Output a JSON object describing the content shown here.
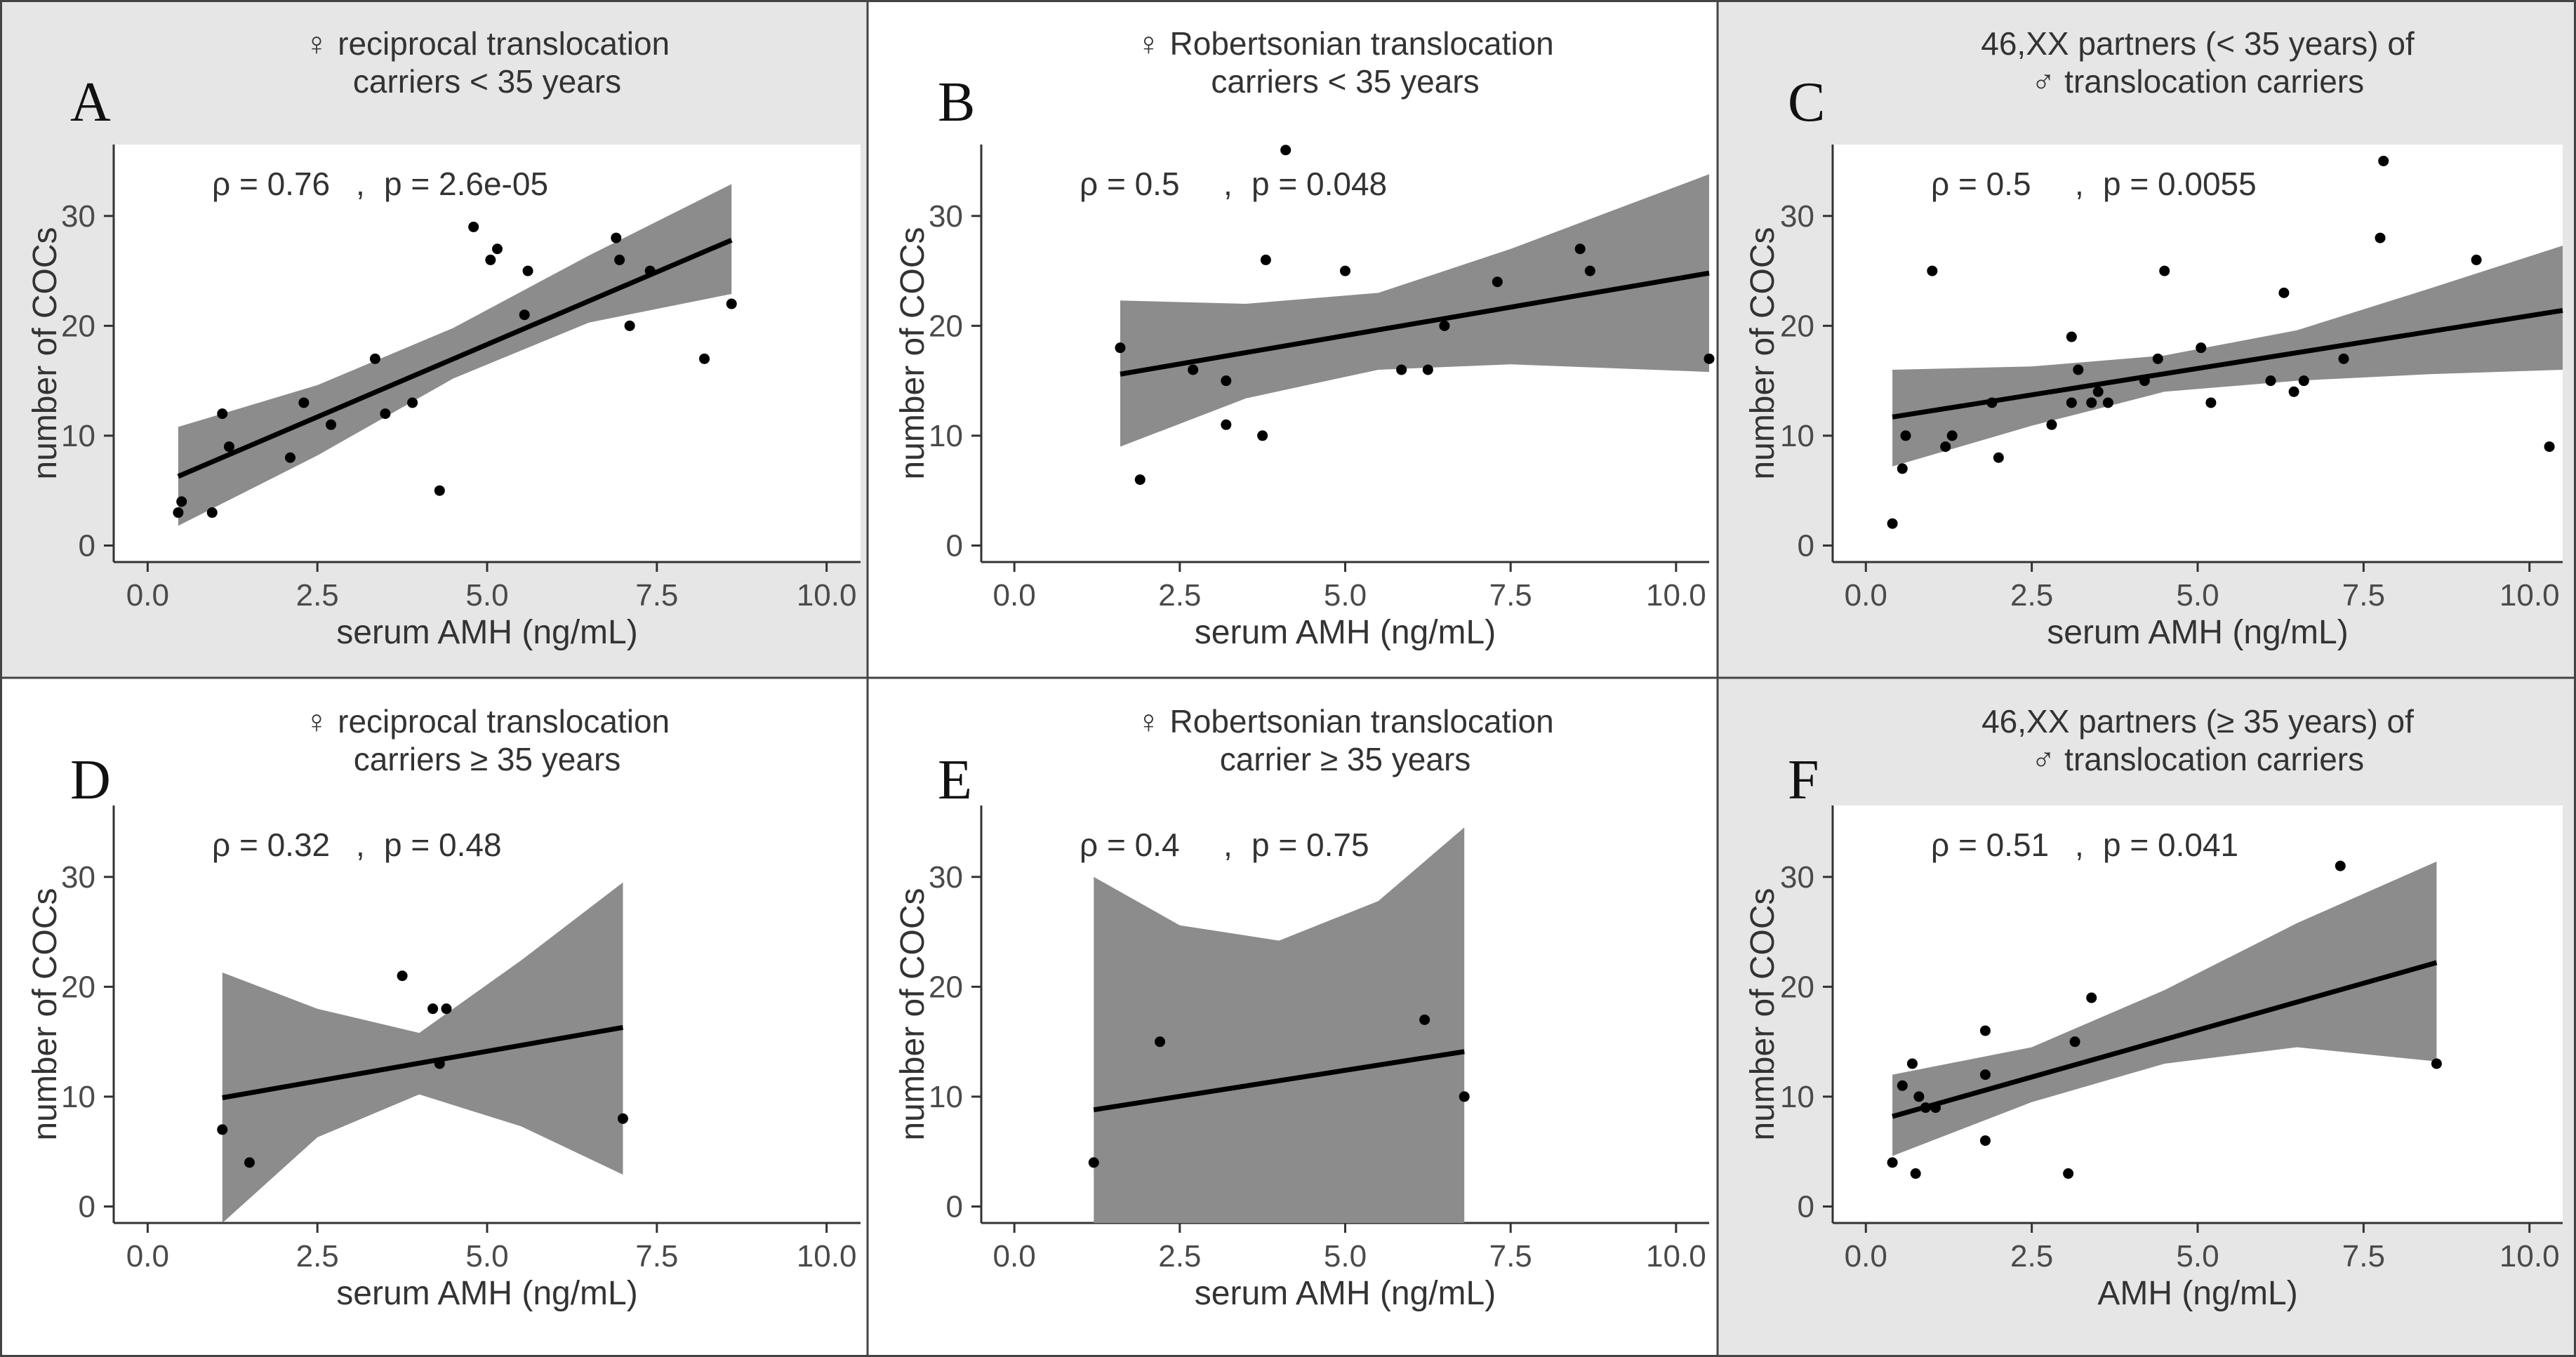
{
  "colors": {
    "page_background": "#ffffff",
    "panel_background_gray": "#e6e6e6",
    "plot_background": "#ffffff",
    "confidence_band": "#8c8c8c",
    "regression_line": "#000000",
    "points": "#000000",
    "panel_border": "#444444"
  },
  "chart_data": [
    {
      "type": "scatter",
      "panel_letter": "A",
      "title_lines": [
        "♀ reciprocal translocation",
        "carriers < 35 years"
      ],
      "xlabel": "serum AMH (ng/mL)",
      "ylabel": "number of COCs",
      "stat_rho": "ρ = 0.76",
      "stat_p": "p = 2.6e-05",
      "xlim": [
        -0.5,
        10.5
      ],
      "ylim": [
        -1.5,
        36.5
      ],
      "x_ticks": [
        0,
        2.5,
        5,
        7.5,
        10
      ],
      "x_tick_labels": [
        "0.0",
        "2.5",
        "5.0",
        "7.5",
        "10.0"
      ],
      "y_ticks": [
        0,
        10,
        20,
        30
      ],
      "y_tick_labels": [
        "0",
        "10",
        "20",
        "30"
      ],
      "fit_x_range": [
        0.45,
        8.6
      ],
      "fit_line": [
        6.3,
        27.8
      ],
      "fit_band_x": [
        0.45,
        2.5,
        4.5,
        6.5,
        8.6
      ],
      "fit_band_lower": [
        1.8,
        8.2,
        15.2,
        20.3,
        22.9
      ],
      "fit_band_upper": [
        10.8,
        14.6,
        19.8,
        26.4,
        32.9
      ],
      "points": [
        [
          0.45,
          3
        ],
        [
          0.5,
          4
        ],
        [
          0.95,
          3
        ],
        [
          1.1,
          12
        ],
        [
          1.2,
          9
        ],
        [
          2.1,
          8
        ],
        [
          2.3,
          13
        ],
        [
          2.7,
          11
        ],
        [
          3.35,
          17
        ],
        [
          3.5,
          12
        ],
        [
          3.9,
          13
        ],
        [
          4.3,
          5
        ],
        [
          4.8,
          29
        ],
        [
          5.05,
          26
        ],
        [
          5.15,
          27
        ],
        [
          5.55,
          21
        ],
        [
          5.6,
          25
        ],
        [
          6.9,
          28
        ],
        [
          6.95,
          26
        ],
        [
          7.1,
          20
        ],
        [
          7.4,
          25
        ],
        [
          8.2,
          17
        ],
        [
          8.6,
          22
        ]
      ]
    },
    {
      "type": "scatter",
      "panel_letter": "B",
      "title_lines": [
        "♀ Robertsonian translocation",
        "carriers < 35 years"
      ],
      "xlabel": "serum AMH (ng/mL)",
      "ylabel": "number of COCs",
      "stat_rho": "ρ = 0.5",
      "stat_p": "p = 0.048",
      "xlim": [
        -0.5,
        10.5
      ],
      "ylim": [
        -1.5,
        36.5
      ],
      "x_ticks": [
        0,
        2.5,
        5,
        7.5,
        10
      ],
      "x_tick_labels": [
        "0.0",
        "2.5",
        "5.0",
        "7.5",
        "10.0"
      ],
      "y_ticks": [
        0,
        10,
        20,
        30
      ],
      "y_tick_labels": [
        "0",
        "10",
        "20",
        "30"
      ],
      "fit_x_range": [
        1.6,
        10.5
      ],
      "fit_line": [
        15.6,
        24.8
      ],
      "fit_band_x": [
        1.6,
        3.5,
        5.5,
        7.5,
        10.5
      ],
      "fit_band_lower": [
        9.0,
        13.4,
        16.0,
        16.5,
        15.8
      ],
      "fit_band_upper": [
        22.3,
        22.0,
        23.0,
        27.0,
        33.8
      ],
      "points": [
        [
          1.6,
          18
        ],
        [
          1.9,
          6
        ],
        [
          2.7,
          16
        ],
        [
          3.2,
          15
        ],
        [
          3.2,
          11
        ],
        [
          3.75,
          10
        ],
        [
          3.8,
          26
        ],
        [
          4.1,
          36
        ],
        [
          5.0,
          25
        ],
        [
          5.85,
          16
        ],
        [
          6.25,
          16
        ],
        [
          6.5,
          20
        ],
        [
          7.3,
          24
        ],
        [
          8.55,
          27
        ],
        [
          8.7,
          25
        ],
        [
          10.5,
          17
        ]
      ]
    },
    {
      "type": "scatter",
      "panel_letter": "C",
      "title_lines": [
        "46,XX partners (< 35 years) of",
        "♂ translocation carriers"
      ],
      "xlabel": "serum AMH (ng/mL)",
      "ylabel": "number of COCs",
      "stat_rho": "ρ = 0.5",
      "stat_p": "p = 0.0055",
      "xlim": [
        -0.5,
        10.5
      ],
      "ylim": [
        -1.5,
        36.5
      ],
      "x_ticks": [
        0,
        2.5,
        5,
        7.5,
        10
      ],
      "x_tick_labels": [
        "0.0",
        "2.5",
        "5.0",
        "7.5",
        "10.0"
      ],
      "y_ticks": [
        0,
        10,
        20,
        30
      ],
      "y_tick_labels": [
        "0",
        "10",
        "20",
        "30"
      ],
      "fit_x_range": [
        0.4,
        10.5
      ],
      "fit_line": [
        11.7,
        21.4
      ],
      "fit_band_x": [
        0.4,
        2.5,
        4.5,
        6.5,
        8.5,
        10.5
      ],
      "fit_band_lower": [
        7.2,
        10.9,
        14.0,
        15.0,
        15.6,
        16.0
      ],
      "fit_band_upper": [
        16.0,
        16.3,
        17.3,
        19.6,
        23.4,
        27.3
      ],
      "points": [
        [
          0.4,
          2
        ],
        [
          0.55,
          7
        ],
        [
          0.6,
          10
        ],
        [
          1.0,
          25
        ],
        [
          1.2,
          9
        ],
        [
          1.3,
          10
        ],
        [
          1.9,
          13
        ],
        [
          2.0,
          8
        ],
        [
          2.8,
          11
        ],
        [
          3.1,
          19
        ],
        [
          3.1,
          13
        ],
        [
          3.2,
          16
        ],
        [
          3.4,
          13
        ],
        [
          3.5,
          14
        ],
        [
          3.65,
          13
        ],
        [
          4.2,
          15
        ],
        [
          4.4,
          17
        ],
        [
          4.5,
          25
        ],
        [
          5.05,
          18
        ],
        [
          5.2,
          13
        ],
        [
          6.1,
          15
        ],
        [
          6.3,
          23
        ],
        [
          6.45,
          14
        ],
        [
          6.6,
          15
        ],
        [
          7.2,
          17
        ],
        [
          7.75,
          28
        ],
        [
          7.8,
          35
        ],
        [
          9.2,
          26
        ],
        [
          10.3,
          9
        ]
      ]
    },
    {
      "type": "scatter",
      "panel_letter": "D",
      "title_lines": [
        "♀ reciprocal translocation",
        "carriers ≥ 35 years"
      ],
      "xlabel": "serum AMH (ng/mL)",
      "ylabel": "number of COCs",
      "stat_rho": "ρ = 0.32",
      "stat_p": "p = 0.48",
      "xlim": [
        -0.5,
        10.5
      ],
      "ylim": [
        -1.5,
        36.5
      ],
      "x_ticks": [
        0,
        2.5,
        5,
        7.5,
        10
      ],
      "x_tick_labels": [
        "0.0",
        "2.5",
        "5.0",
        "7.5",
        "10.0"
      ],
      "y_ticks": [
        0,
        10,
        20,
        30
      ],
      "y_tick_labels": [
        "0",
        "10",
        "20",
        "30"
      ],
      "fit_x_range": [
        1.1,
        7.0
      ],
      "fit_line": [
        9.9,
        16.3
      ],
      "fit_band_x": [
        1.1,
        2.5,
        4.0,
        5.5,
        7.0
      ],
      "fit_band_lower": [
        -1.5,
        6.3,
        10.2,
        7.3,
        2.9
      ],
      "fit_band_upper": [
        21.3,
        18.0,
        15.8,
        22.4,
        29.5
      ],
      "points": [
        [
          1.1,
          7
        ],
        [
          1.5,
          4
        ],
        [
          3.75,
          21
        ],
        [
          4.2,
          18
        ],
        [
          4.3,
          13
        ],
        [
          4.4,
          18
        ],
        [
          7.0,
          8
        ]
      ]
    },
    {
      "type": "scatter",
      "panel_letter": "E",
      "title_lines": [
        "♀ Robertsonian translocation",
        "carrier ≥ 35 years"
      ],
      "xlabel": "serum AMH (ng/mL)",
      "ylabel": "number of COCs",
      "stat_rho": "ρ = 0.4",
      "stat_p": "p = 0.75",
      "xlim": [
        -0.5,
        10.5
      ],
      "ylim": [
        -1.5,
        36.5
      ],
      "x_ticks": [
        0,
        2.5,
        5,
        7.5,
        10
      ],
      "x_tick_labels": [
        "0.0",
        "2.5",
        "5.0",
        "7.5",
        "10.0"
      ],
      "y_ticks": [
        0,
        10,
        20,
        30
      ],
      "y_tick_labels": [
        "0",
        "10",
        "20",
        "30"
      ],
      "fit_x_range": [
        1.2,
        6.8
      ],
      "fit_line": [
        8.8,
        14.1
      ],
      "fit_band_x": [
        1.2,
        2.5,
        4.0,
        5.5,
        6.8
      ],
      "fit_band_lower": [
        -1.5,
        -1.5,
        -1.5,
        -1.5,
        -1.5
      ],
      "fit_band_upper": [
        30.0,
        25.6,
        24.2,
        27.8,
        34.5
      ],
      "points": [
        [
          1.2,
          4
        ],
        [
          2.2,
          15
        ],
        [
          6.2,
          17
        ],
        [
          6.8,
          10
        ]
      ]
    },
    {
      "type": "scatter",
      "panel_letter": "F",
      "title_lines": [
        "46,XX partners (≥ 35 years) of",
        "♂ translocation carriers"
      ],
      "xlabel": "AMH (ng/mL)",
      "ylabel": "number of COCs",
      "stat_rho": "ρ = 0.51",
      "stat_p": "p = 0.041",
      "xlim": [
        -0.5,
        10.5
      ],
      "ylim": [
        -1.5,
        36.5
      ],
      "x_ticks": [
        0,
        2.5,
        5,
        7.5,
        10
      ],
      "x_tick_labels": [
        "0.0",
        "2.5",
        "5.0",
        "7.5",
        "10.0"
      ],
      "y_ticks": [
        0,
        10,
        20,
        30
      ],
      "y_tick_labels": [
        "0",
        "10",
        "20",
        "30"
      ],
      "fit_x_range": [
        0.4,
        8.6
      ],
      "fit_line": [
        8.2,
        22.2
      ],
      "fit_band_x": [
        0.4,
        2.5,
        4.5,
        6.5,
        8.6
      ],
      "fit_band_lower": [
        4.6,
        9.5,
        13.0,
        14.5,
        13.2
      ],
      "fit_band_upper": [
        12.0,
        14.5,
        19.7,
        25.8,
        31.4
      ],
      "points": [
        [
          0.4,
          4
        ],
        [
          0.55,
          11
        ],
        [
          0.7,
          13
        ],
        [
          0.75,
          3
        ],
        [
          0.8,
          10
        ],
        [
          0.9,
          9
        ],
        [
          1.05,
          9
        ],
        [
          1.8,
          16
        ],
        [
          1.8,
          12
        ],
        [
          1.8,
          6
        ],
        [
          3.05,
          3
        ],
        [
          3.15,
          15
        ],
        [
          3.4,
          19
        ],
        [
          7.15,
          31
        ],
        [
          8.6,
          13
        ]
      ]
    }
  ]
}
